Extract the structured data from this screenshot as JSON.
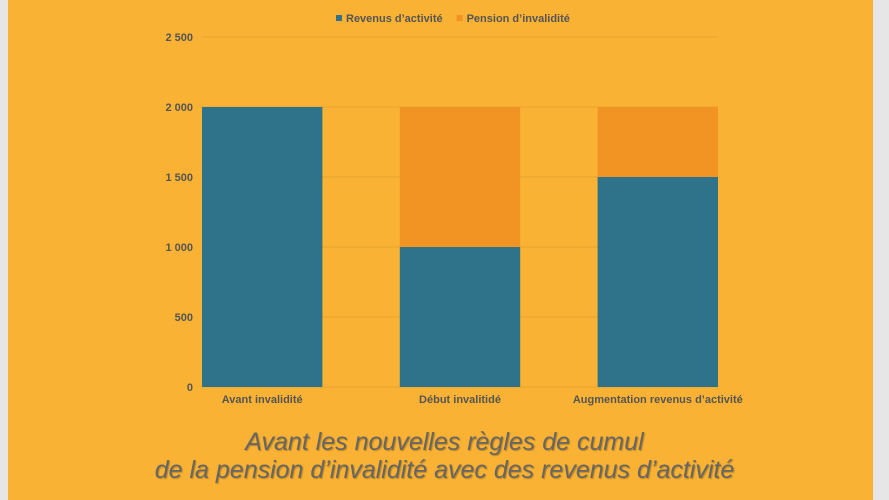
{
  "chart_data": {
    "type": "bar",
    "stacked": true,
    "categories": [
      "Avant invalidité",
      "Début invalitidé",
      "Augmentation revenus d’activité"
    ],
    "series": [
      {
        "name": "Revenus d’activité",
        "color": "#2e738a",
        "values": [
          2000,
          1000,
          1500
        ]
      },
      {
        "name": "Pension d’invalidité",
        "color": "#f29423",
        "values": [
          0,
          1000,
          500
        ]
      }
    ],
    "yticks": [
      "0",
      "500",
      "1 000",
      "1 500",
      "2 000",
      "2 500"
    ],
    "ylim": [
      0,
      2500
    ],
    "grid": true,
    "legend": "top"
  },
  "caption": {
    "line1": "Avant les nouvelles règles de cumul",
    "line2": "de la pension d’invalidité avec des revenus d’activité"
  },
  "colors": {
    "background": "#f9b233",
    "text": "#555555",
    "caption": "#666666"
  }
}
